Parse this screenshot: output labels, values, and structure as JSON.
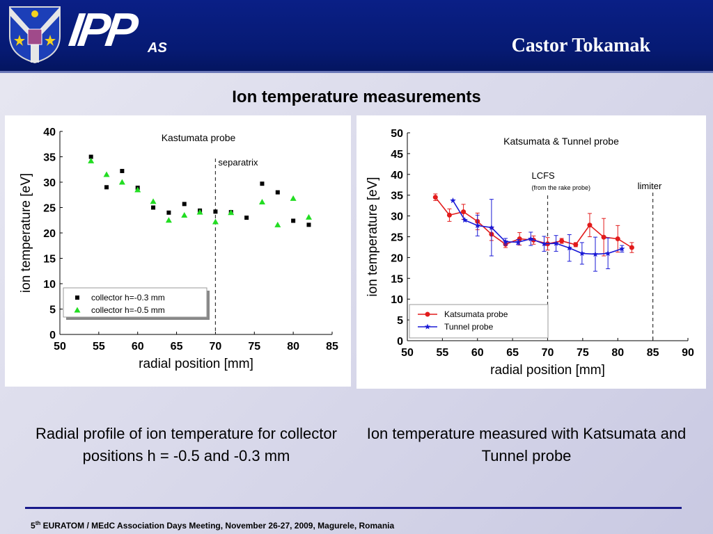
{
  "header": {
    "logo_text": "IPP",
    "logo_sub": "AS",
    "title": "Castor Tokamak"
  },
  "slide_title": "Ion temperature measurements",
  "captions": {
    "left": "Radial profile of ion temperature for collector positions h = -0.5 and -0.3 mm",
    "right": "Ion temperature measured with Katsumata and Tunnel probe"
  },
  "footer": {
    "ordinal": "5",
    "ordinal_suffix": "th",
    "text": " EURATOM / MEdC Association Days Meeting, November 26-27, 2009, Magurele, Romania"
  },
  "colors": {
    "header_bg": "#0a1f86",
    "footer_line": "#18198a",
    "series_black": "#000000",
    "series_green": "#22dd22",
    "series_red": "#e21b1b",
    "series_blue": "#1a1ad6"
  },
  "chart_data": [
    {
      "type": "scatter",
      "title": "Kastumata probe",
      "xlabel": "radial position [mm]",
      "ylabel": "ion temperature [eV]",
      "xlim": [
        50,
        85
      ],
      "ylim": [
        0,
        40
      ],
      "xticks": [
        50,
        55,
        60,
        65,
        70,
        75,
        80,
        85
      ],
      "yticks": [
        0,
        5,
        10,
        15,
        20,
        25,
        30,
        35,
        40
      ],
      "legend_position": "bottom-left",
      "annotations": [
        {
          "text": "separatrix",
          "x": 70
        }
      ],
      "series": [
        {
          "name": "collector h=-0.3 mm",
          "marker": "square",
          "color": "#000000",
          "points": [
            [
              54,
              35
            ],
            [
              56,
              29
            ],
            [
              58,
              32.2
            ],
            [
              60,
              28.9
            ],
            [
              62,
              25
            ],
            [
              64,
              24
            ],
            [
              66,
              25.7
            ],
            [
              68,
              24.4
            ],
            [
              70,
              24.2
            ],
            [
              72,
              24.1
            ],
            [
              74,
              23
            ],
            [
              76,
              29.7
            ],
            [
              78,
              28
            ],
            [
              80,
              22.4
            ],
            [
              82,
              21.6
            ]
          ]
        },
        {
          "name": "collector h=-0.5 mm",
          "marker": "triangle",
          "color": "#22dd22",
          "points": [
            [
              54,
              34.2
            ],
            [
              56,
              31.5
            ],
            [
              58,
              30
            ],
            [
              60,
              28.5
            ],
            [
              62,
              26.2
            ],
            [
              64,
              22.5
            ],
            [
              66,
              23.5
            ],
            [
              68,
              24.1
            ],
            [
              70,
              22.2
            ],
            [
              72,
              24
            ],
            [
              76,
              26.1
            ],
            [
              78,
              21.6
            ],
            [
              80,
              26.8
            ],
            [
              82,
              23.1
            ]
          ]
        }
      ]
    },
    {
      "type": "line",
      "title": "Katsumata & Tunnel probe",
      "xlabel": "radial position [mm]",
      "ylabel": "ion temperature [eV]",
      "xlim": [
        50,
        90
      ],
      "ylim": [
        0,
        50
      ],
      "xticks": [
        50,
        55,
        60,
        65,
        70,
        75,
        80,
        85,
        90
      ],
      "yticks": [
        0,
        5,
        10,
        15,
        20,
        25,
        30,
        35,
        40,
        45,
        50
      ],
      "legend_position": "bottom-left",
      "annotations": [
        {
          "text": "LCFS",
          "sub": "(from the rake probe)",
          "x": 70
        },
        {
          "text": "limiter",
          "x": 85
        }
      ],
      "series": [
        {
          "name": "Katsumata probe",
          "marker": "circle",
          "color": "#e21b1b",
          "points": [
            [
              54,
              34.5,
              0.8
            ],
            [
              56,
              30.2,
              1.5
            ],
            [
              58,
              31,
              1.8
            ],
            [
              60,
              28.7,
              2
            ],
            [
              62,
              25.6,
              1.5
            ],
            [
              64,
              23.2,
              0.8
            ],
            [
              66,
              24.5,
              1.5
            ],
            [
              68,
              24.2,
              1
            ],
            [
              70,
              23.3,
              1.5
            ],
            [
              72,
              24,
              0.6
            ],
            [
              74,
              23.1,
              0.5
            ],
            [
              76,
              27.8,
              2.8
            ],
            [
              78,
              24.9,
              4.5
            ],
            [
              80,
              24.5,
              3.2
            ],
            [
              82,
              22.4,
              1.2
            ]
          ]
        },
        {
          "name": "Tunnel probe",
          "marker": "star",
          "color": "#1a1ad6",
          "points": [
            [
              56.5,
              33.7,
              0
            ],
            [
              58.2,
              29,
              0
            ],
            [
              60,
              27.7,
              2.5
            ],
            [
              62,
              27.2,
              6.8
            ],
            [
              64,
              23.8,
              0.8
            ],
            [
              65.8,
              23.7,
              0.6
            ],
            [
              67.6,
              24.5,
              1.6
            ],
            [
              69.5,
              23.3,
              1.8
            ],
            [
              71.2,
              23.4,
              1.9
            ],
            [
              73.1,
              22.3,
              3.2
            ],
            [
              74.9,
              21,
              2.6
            ],
            [
              76.8,
              20.8,
              4.1
            ],
            [
              78.6,
              21,
              3.7
            ],
            [
              80.6,
              22.1,
              0.8
            ]
          ]
        }
      ]
    }
  ]
}
